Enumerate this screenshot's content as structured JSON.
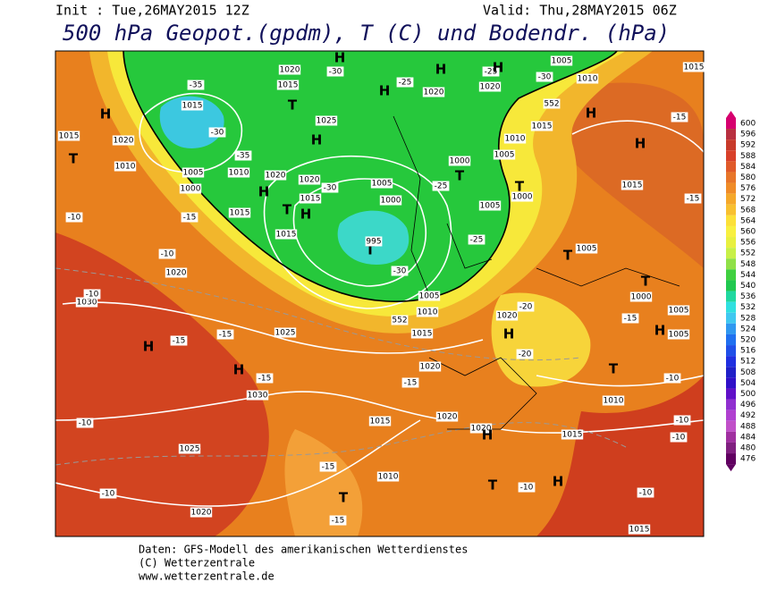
{
  "header": {
    "init": "Init : Tue,26MAY2015 12Z",
    "valid": "Valid: Thu,28MAY2015 06Z",
    "title": "500 hPa Geopot.(gpdm), T (C) und Bodendr. (hPa)"
  },
  "colorbar": {
    "labels": [
      600,
      596,
      592,
      588,
      584,
      580,
      576,
      572,
      568,
      564,
      560,
      556,
      552,
      548,
      544,
      540,
      536,
      532,
      528,
      524,
      520,
      516,
      512,
      508,
      504,
      500,
      496,
      492,
      488,
      484,
      480,
      476
    ],
    "colors": [
      "#d6006e",
      "#b83040",
      "#c83a2a",
      "#d8402a",
      "#e05a2a",
      "#e8762a",
      "#f08c28",
      "#f5a82a",
      "#f8c030",
      "#fce038",
      "#f8f040",
      "#e8f040",
      "#c8f048",
      "#90e048",
      "#40d040",
      "#20c850",
      "#20d8a0",
      "#30e0e0",
      "#40c8f0",
      "#3098f0",
      "#2070f0",
      "#2050e8",
      "#2030e0",
      "#2020c8",
      "#3010c8",
      "#6010c8",
      "#9030d0",
      "#b040d0",
      "#c050c8",
      "#a030a0",
      "#802080",
      "#600060"
    ]
  },
  "map": {
    "labels": [
      "H",
      "T",
      "1015",
      "1020",
      "1010",
      "1005",
      "1000",
      "-15",
      "-10",
      "-10",
      "1020",
      "1015",
      "1015",
      "1010",
      "-35",
      "1015",
      "-30",
      "-35",
      "1020",
      "-30",
      "H",
      "1015",
      "T",
      "1025",
      "H",
      "1020",
      "H",
      "T",
      "H",
      "1020",
      "-30",
      "1015",
      "1005",
      "1000",
      "T",
      "995",
      "-30",
      "1005",
      "1010",
      "552",
      "1015",
      "H",
      "1020",
      "-25",
      "H",
      "-25",
      "1020",
      "H",
      "-30",
      "1005",
      "1010",
      "552",
      "1015",
      "1010",
      "H",
      "-15",
      "H",
      "1015",
      "1005",
      "1000",
      "T",
      "-25",
      "1005",
      "-25",
      "T",
      "1000",
      "1005",
      "T",
      "1015",
      "-15",
      "1000",
      "T",
      "-15",
      "H",
      "1005",
      "1005",
      "1020",
      "H",
      "-20",
      "-20",
      "T",
      "-10",
      "1010",
      "1015",
      "-10",
      "-10",
      "H",
      "T",
      "-10",
      "-10",
      "1015",
      "1020",
      "1020",
      "H",
      "1015",
      "1010",
      "-15",
      "T",
      "-15",
      "1020",
      "-10",
      "1025",
      "-10",
      "1030",
      "-15",
      "H",
      "-15",
      "H",
      "1025",
      "-15",
      "1030",
      "-10",
      "-15",
      "1020"
    ]
  },
  "footer": {
    "lines": [
      "Daten: GFS-Modell des amerikanischen Wetterdienstes",
      "(C) Wetterzentrale",
      "www.wetterzentrale.de"
    ]
  }
}
